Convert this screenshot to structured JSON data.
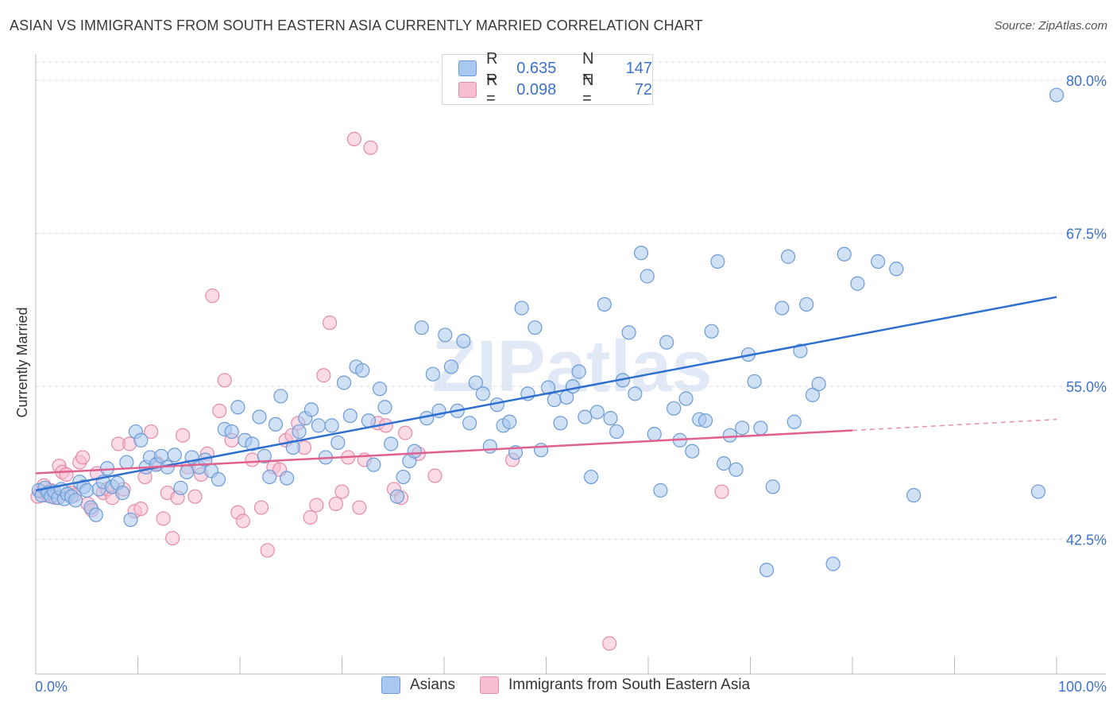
{
  "title": "ASIAN VS IMMIGRANTS FROM SOUTH EASTERN ASIA CURRENTLY MARRIED CORRELATION CHART",
  "source": "Source: ZipAtlas.com",
  "watermark": "ZIPatlas",
  "legend": {
    "rows": [
      {
        "r_label": "R =",
        "r_value": "0.635",
        "n_label": "N =",
        "n_value": "147"
      },
      {
        "r_label": "R =",
        "r_value": "0.098",
        "n_label": "N =",
        "n_value": "72"
      }
    ]
  },
  "bottom_legend": {
    "asians": "Asians",
    "immigrants": "Immigrants from South Eastern Asia"
  },
  "colors": {
    "asian_fill": "#a9c8ef",
    "asian_stroke": "#6b9bd6",
    "asian_line": "#2f6fd0",
    "imm_fill": "#f7bdd0",
    "imm_stroke": "#e58aab",
    "imm_line": "#e0608e",
    "tick_label": "#3d72c9",
    "grid": "#d9d9d9"
  },
  "chart_data": {
    "type": "scatter",
    "title": "ASIAN VS IMMIGRANTS FROM SOUTH EASTERN ASIA CURRENTLY MARRIED CORRELATION CHART",
    "xlabel": "",
    "ylabel": "Currently Married",
    "xlim": [
      0,
      100
    ],
    "ylim": [
      31.5,
      81.5
    ],
    "x_tick_labels": [
      "0.0%",
      "100.0%"
    ],
    "y_ticks": [
      42.5,
      55.0,
      67.5,
      80.0
    ],
    "y_tick_labels": [
      "42.5%",
      "55.0%",
      "67.5%",
      "80.0%"
    ],
    "grid": true,
    "legend_position": "top-center",
    "series": [
      {
        "name": "Asians",
        "R": 0.635,
        "N": 147,
        "trend": {
          "x": [
            0,
            100
          ],
          "y": [
            46.5,
            62.3
          ]
        },
        "points": [
          [
            0.3,
            46.5
          ],
          [
            0.6,
            46.1
          ],
          [
            0.9,
            46.7
          ],
          [
            1.2,
            46.3
          ],
          [
            1.5,
            46.0
          ],
          [
            1.8,
            46.4
          ],
          [
            2.2,
            45.9
          ],
          [
            2.5,
            46.6
          ],
          [
            2.8,
            45.8
          ],
          [
            3.1,
            46.2
          ],
          [
            3.5,
            46.0
          ],
          [
            3.9,
            45.7
          ],
          [
            4.3,
            47.2
          ],
          [
            4.7,
            46.8
          ],
          [
            5.0,
            46.5
          ],
          [
            5.4,
            45.1
          ],
          [
            5.9,
            44.5
          ],
          [
            6.2,
            46.6
          ],
          [
            6.6,
            47.2
          ],
          [
            7.0,
            48.3
          ],
          [
            7.5,
            46.8
          ],
          [
            8.0,
            47.1
          ],
          [
            8.5,
            46.3
          ],
          [
            8.9,
            48.8
          ],
          [
            9.3,
            44.1
          ],
          [
            9.8,
            51.3
          ],
          [
            10.3,
            50.6
          ],
          [
            10.8,
            48.4
          ],
          [
            11.2,
            49.2
          ],
          [
            11.8,
            48.6
          ],
          [
            12.3,
            49.3
          ],
          [
            12.9,
            48.4
          ],
          [
            13.6,
            49.4
          ],
          [
            14.2,
            46.7
          ],
          [
            14.8,
            48.0
          ],
          [
            15.3,
            49.2
          ],
          [
            16.0,
            48.4
          ],
          [
            16.6,
            49.0
          ],
          [
            17.2,
            48.1
          ],
          [
            17.9,
            47.4
          ],
          [
            18.5,
            51.5
          ],
          [
            19.2,
            51.3
          ],
          [
            19.8,
            53.3
          ],
          [
            20.5,
            50.6
          ],
          [
            21.2,
            50.3
          ],
          [
            21.9,
            52.5
          ],
          [
            22.4,
            49.3
          ],
          [
            22.9,
            47.6
          ],
          [
            23.5,
            51.9
          ],
          [
            24.0,
            54.2
          ],
          [
            24.6,
            47.5
          ],
          [
            25.2,
            50.0
          ],
          [
            25.8,
            51.3
          ],
          [
            26.4,
            52.4
          ],
          [
            27.0,
            53.1
          ],
          [
            27.7,
            51.8
          ],
          [
            28.4,
            49.2
          ],
          [
            29.0,
            51.8
          ],
          [
            29.6,
            50.4
          ],
          [
            30.2,
            55.3
          ],
          [
            30.8,
            52.6
          ],
          [
            31.4,
            56.6
          ],
          [
            32.0,
            56.3
          ],
          [
            32.6,
            52.2
          ],
          [
            33.1,
            48.6
          ],
          [
            33.7,
            54.8
          ],
          [
            34.2,
            53.3
          ],
          [
            34.8,
            50.3
          ],
          [
            35.4,
            46.0
          ],
          [
            36.0,
            47.6
          ],
          [
            36.6,
            48.9
          ],
          [
            37.1,
            49.7
          ],
          [
            37.8,
            59.8
          ],
          [
            38.3,
            52.4
          ],
          [
            38.9,
            56.0
          ],
          [
            39.5,
            53.0
          ],
          [
            40.1,
            59.2
          ],
          [
            40.7,
            56.6
          ],
          [
            41.3,
            53.0
          ],
          [
            41.9,
            58.7
          ],
          [
            42.5,
            52.0
          ],
          [
            43.1,
            55.3
          ],
          [
            43.8,
            54.4
          ],
          [
            44.5,
            50.1
          ],
          [
            45.2,
            53.5
          ],
          [
            45.8,
            51.8
          ],
          [
            46.4,
            52.1
          ],
          [
            47.0,
            49.6
          ],
          [
            47.6,
            61.4
          ],
          [
            48.2,
            54.4
          ],
          [
            48.9,
            59.8
          ],
          [
            49.5,
            49.8
          ],
          [
            50.2,
            54.9
          ],
          [
            50.8,
            53.9
          ],
          [
            51.4,
            52.0
          ],
          [
            52.0,
            54.1
          ],
          [
            52.6,
            55.0
          ],
          [
            53.2,
            56.2
          ],
          [
            53.8,
            52.5
          ],
          [
            54.4,
            47.6
          ],
          [
            55.0,
            52.9
          ],
          [
            55.7,
            61.7
          ],
          [
            56.3,
            52.4
          ],
          [
            56.9,
            51.3
          ],
          [
            57.5,
            55.5
          ],
          [
            58.1,
            59.4
          ],
          [
            58.7,
            54.4
          ],
          [
            59.3,
            65.9
          ],
          [
            59.9,
            64.0
          ],
          [
            60.6,
            51.1
          ],
          [
            61.2,
            46.5
          ],
          [
            61.8,
            58.6
          ],
          [
            62.5,
            53.2
          ],
          [
            63.1,
            50.6
          ],
          [
            63.7,
            54.0
          ],
          [
            64.3,
            49.7
          ],
          [
            65.0,
            52.3
          ],
          [
            65.6,
            52.2
          ],
          [
            66.2,
            59.5
          ],
          [
            66.8,
            65.2
          ],
          [
            67.4,
            48.7
          ],
          [
            68.0,
            51.0
          ],
          [
            68.6,
            48.2
          ],
          [
            69.2,
            51.6
          ],
          [
            69.8,
            57.6
          ],
          [
            70.4,
            55.4
          ],
          [
            71.0,
            51.6
          ],
          [
            71.6,
            40.0
          ],
          [
            72.2,
            46.8
          ],
          [
            73.1,
            61.4
          ],
          [
            73.7,
            65.6
          ],
          [
            74.3,
            52.1
          ],
          [
            74.9,
            57.9
          ],
          [
            75.5,
            61.7
          ],
          [
            76.1,
            54.3
          ],
          [
            76.7,
            55.2
          ],
          [
            78.1,
            40.5
          ],
          [
            79.2,
            65.8
          ],
          [
            80.5,
            63.4
          ],
          [
            82.5,
            65.2
          ],
          [
            84.3,
            64.6
          ],
          [
            86.0,
            46.1
          ],
          [
            98.2,
            46.4
          ],
          [
            100.0,
            78.8
          ]
        ]
      },
      {
        "name": "Immigrants from South Eastern Asia",
        "R": 0.098,
        "N": 72,
        "trend": {
          "x": [
            0,
            80
          ],
          "y": [
            47.9,
            51.4
          ]
        },
        "trend_dashed": {
          "x": [
            80,
            100
          ],
          "y": [
            51.4,
            52.3
          ]
        },
        "points": [
          [
            0.2,
            46.0
          ],
          [
            0.5,
            46.4
          ],
          [
            0.8,
            46.9
          ],
          [
            1.1,
            46.1
          ],
          [
            1.5,
            46.5
          ],
          [
            1.9,
            45.9
          ],
          [
            2.3,
            48.5
          ],
          [
            2.6,
            48.0
          ],
          [
            3.0,
            47.8
          ],
          [
            3.4,
            46.3
          ],
          [
            3.8,
            46.1
          ],
          [
            4.3,
            48.8
          ],
          [
            4.6,
            49.2
          ],
          [
            5.1,
            45.4
          ],
          [
            5.5,
            44.9
          ],
          [
            6.0,
            47.9
          ],
          [
            6.6,
            46.3
          ],
          [
            7.0,
            46.6
          ],
          [
            7.5,
            45.9
          ],
          [
            8.1,
            50.3
          ],
          [
            8.6,
            46.6
          ],
          [
            9.2,
            50.3
          ],
          [
            9.7,
            44.8
          ],
          [
            10.3,
            45.0
          ],
          [
            10.7,
            47.6
          ],
          [
            11.3,
            51.3
          ],
          [
            11.9,
            48.7
          ],
          [
            12.5,
            44.2
          ],
          [
            12.9,
            46.3
          ],
          [
            13.4,
            42.6
          ],
          [
            13.9,
            45.9
          ],
          [
            14.4,
            51.0
          ],
          [
            14.9,
            48.4
          ],
          [
            15.6,
            46.0
          ],
          [
            16.2,
            47.8
          ],
          [
            16.8,
            49.5
          ],
          [
            17.3,
            62.4
          ],
          [
            18.0,
            53.0
          ],
          [
            18.5,
            55.5
          ],
          [
            19.2,
            50.6
          ],
          [
            19.8,
            44.7
          ],
          [
            20.3,
            44.0
          ],
          [
            21.2,
            49.0
          ],
          [
            22.1,
            45.1
          ],
          [
            22.7,
            41.6
          ],
          [
            23.3,
            48.4
          ],
          [
            23.9,
            48.2
          ],
          [
            24.5,
            50.6
          ],
          [
            25.1,
            51.0
          ],
          [
            25.7,
            52.0
          ],
          [
            26.3,
            50.0
          ],
          [
            26.9,
            44.3
          ],
          [
            27.5,
            45.3
          ],
          [
            28.2,
            55.9
          ],
          [
            28.8,
            60.2
          ],
          [
            29.4,
            45.4
          ],
          [
            30.0,
            46.4
          ],
          [
            30.6,
            49.2
          ],
          [
            31.2,
            75.2
          ],
          [
            31.7,
            45.1
          ],
          [
            32.2,
            49.0
          ],
          [
            32.8,
            74.5
          ],
          [
            33.5,
            52.0
          ],
          [
            34.3,
            51.8
          ],
          [
            35.1,
            46.6
          ],
          [
            35.8,
            45.9
          ],
          [
            36.2,
            51.2
          ],
          [
            37.5,
            49.5
          ],
          [
            39.1,
            47.7
          ],
          [
            46.7,
            49.0
          ],
          [
            56.2,
            34.0
          ],
          [
            67.2,
            46.4
          ]
        ]
      }
    ]
  }
}
